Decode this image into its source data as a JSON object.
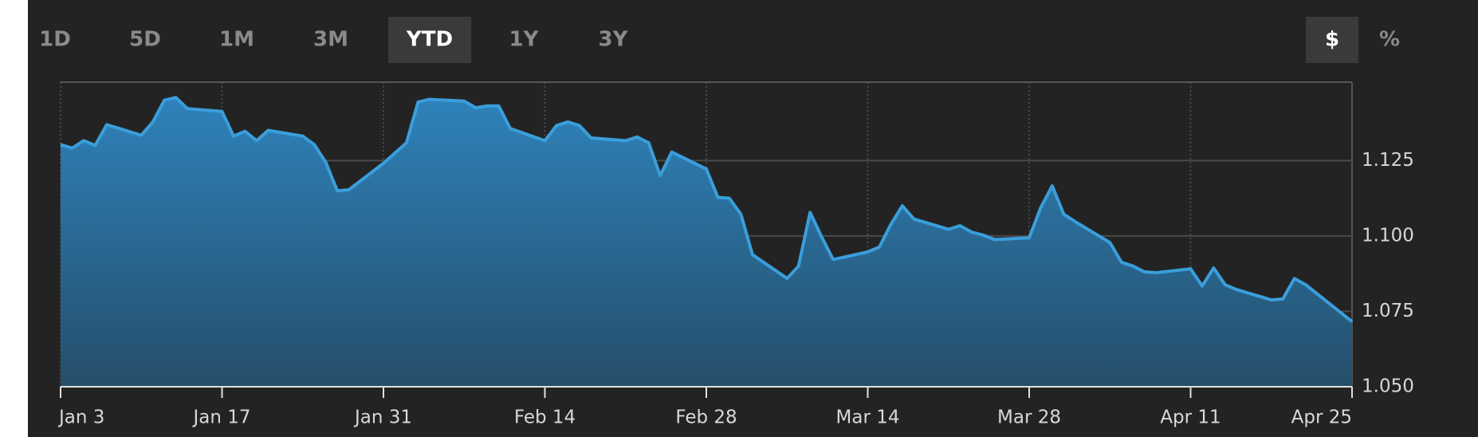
{
  "controls": {
    "ranges": [
      "1D",
      "5D",
      "1M",
      "3M",
      "YTD",
      "1Y",
      "3Y"
    ],
    "selected_range": "YTD",
    "units": [
      "$",
      "%"
    ],
    "selected_unit": "$"
  },
  "chart_data": {
    "type": "area",
    "x": [
      0,
      1,
      2,
      3,
      4,
      7,
      8,
      9,
      10,
      11,
      14,
      15,
      16,
      17,
      18,
      21,
      22,
      23,
      24,
      25,
      28,
      30,
      31,
      32,
      35,
      36,
      37,
      38,
      39,
      42,
      43,
      44,
      45,
      46,
      49,
      50,
      51,
      52,
      53,
      56,
      57,
      58,
      59,
      60,
      63,
      64,
      65,
      66,
      67,
      70,
      71,
      72,
      73,
      74,
      77,
      78,
      79,
      80,
      81,
      84,
      85,
      86,
      87,
      88,
      91,
      92,
      93,
      94,
      95,
      98,
      99,
      100,
      101,
      102,
      105,
      106,
      107,
      108,
      112
    ],
    "series": [
      {
        "color": "#3a9edb",
        "values": [
          1.1303,
          1.1291,
          1.1316,
          1.13,
          1.1369,
          1.1334,
          1.1378,
          1.145,
          1.1459,
          1.1422,
          1.1413,
          1.1331,
          1.1347,
          1.1316,
          1.135,
          1.1331,
          1.1303,
          1.1244,
          1.115,
          1.1153,
          1.1241,
          1.1309,
          1.1444,
          1.1453,
          1.1447,
          1.1425,
          1.1431,
          1.1431,
          1.1356,
          1.1316,
          1.1366,
          1.1378,
          1.1366,
          1.1325,
          1.1316,
          1.1328,
          1.1309,
          1.12,
          1.1278,
          1.1222,
          1.1128,
          1.1125,
          1.1072,
          1.0938,
          1.0859,
          1.09,
          1.1078,
          1.0997,
          1.0922,
          1.0947,
          1.0963,
          1.1038,
          1.11,
          1.1056,
          1.1022,
          1.1034,
          1.1013,
          1.1003,
          1.0988,
          1.0994,
          1.1094,
          1.1166,
          1.1072,
          1.1047,
          1.0978,
          1.0913,
          1.09,
          1.0881,
          1.0878,
          1.0891,
          1.0834,
          1.0894,
          1.0838,
          1.0822,
          1.0788,
          1.0791,
          1.0859,
          1.0838,
          1.0716
        ]
      }
    ],
    "xlim": [
      0,
      112
    ],
    "xticks": [
      {
        "value": 0,
        "label": "Jan 3"
      },
      {
        "value": 14,
        "label": "Jan 17"
      },
      {
        "value": 28,
        "label": "Jan 31"
      },
      {
        "value": 42,
        "label": "Feb 14"
      },
      {
        "value": 56,
        "label": "Feb 28"
      },
      {
        "value": 70,
        "label": "Mar 14"
      },
      {
        "value": 84,
        "label": "Mar 28"
      },
      {
        "value": 98,
        "label": "Apr 11"
      },
      {
        "value": 112,
        "label": "Apr 25"
      }
    ],
    "ylim": [
      1.05,
      1.151
    ],
    "yticks": [
      {
        "value": 1.05,
        "label": "1.050"
      },
      1.075,
      {
        "value": 1.1,
        "label": "1.100"
      },
      1.125
    ],
    "grid": true
  }
}
